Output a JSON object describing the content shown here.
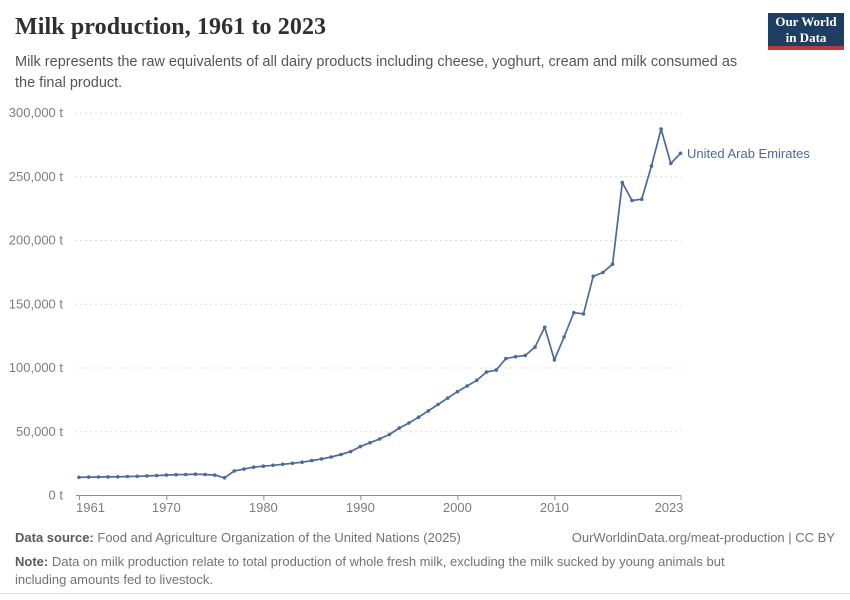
{
  "header": {
    "title": "Milk production, 1961 to 2023",
    "subtitle": "Milk represents the raw equivalents of all dairy products including cheese, yoghurt, cream and milk consumed as the final product.",
    "logo": {
      "line1": "Our World",
      "line2": "in Data",
      "bg_color": "#1d3d63",
      "accent_color": "#bf3a36"
    }
  },
  "chart_data": {
    "type": "line",
    "title": "Milk production, 1961 to 2023",
    "xlabel": "",
    "ylabel": "",
    "unit": "t",
    "grid": "horizontal-dashed",
    "legend_position": "end-of-line-label",
    "xlim": [
      1961,
      2023
    ],
    "ylim": [
      0,
      300000
    ],
    "x_ticks": [
      1961,
      1970,
      1980,
      1990,
      2000,
      2010,
      2023
    ],
    "y_ticks": [
      0,
      50000,
      100000,
      150000,
      200000,
      250000,
      300000
    ],
    "y_tick_labels": [
      "0 t",
      "50,000 t",
      "100,000 t",
      "150,000 t",
      "200,000 t",
      "250,000 t",
      "300,000 t"
    ],
    "series": [
      {
        "name": "United Arab Emirates",
        "color": "#4c6a9c",
        "years": [
          1961,
          1962,
          1963,
          1964,
          1965,
          1966,
          1967,
          1968,
          1969,
          1970,
          1971,
          1972,
          1973,
          1974,
          1975,
          1976,
          1977,
          1978,
          1979,
          1980,
          1981,
          1982,
          1983,
          1984,
          1985,
          1986,
          1987,
          1988,
          1989,
          1990,
          1991,
          1992,
          1993,
          1994,
          1995,
          1996,
          1997,
          1998,
          1999,
          2000,
          2001,
          2002,
          2003,
          2004,
          2005,
          2006,
          2007,
          2008,
          2009,
          2010,
          2011,
          2012,
          2013,
          2014,
          2015,
          2016,
          2017,
          2018,
          2019,
          2020,
          2021,
          2022,
          2023
        ],
        "values": [
          13900,
          14000,
          14100,
          14200,
          14300,
          14500,
          14700,
          15000,
          15200,
          15600,
          15900,
          16100,
          16300,
          16100,
          15600,
          13500,
          18800,
          20300,
          21800,
          22600,
          23300,
          24100,
          24900,
          25700,
          27000,
          28300,
          29800,
          31800,
          34000,
          38000,
          41000,
          44000,
          47500,
          52500,
          56500,
          61000,
          66000,
          71000,
          76000,
          81000,
          85500,
          90000,
          96500,
          98000,
          107000,
          108500,
          109500,
          116000,
          131500,
          106000,
          124000,
          143000,
          142000,
          171500,
          174500,
          181000,
          245000,
          231000,
          232000,
          258000,
          287000,
          260000,
          268000
        ]
      }
    ]
  },
  "footer": {
    "datasource_label": "Data source:",
    "datasource_text": "Food and Agriculture Organization of the United Nations (2025)",
    "link_text": "OurWorldinData.org/meat-production | CC BY",
    "note_label": "Note:",
    "note_text": "Data on milk production relate to total production of whole fresh milk, excluding the milk sucked by young animals but including amounts fed to livestock."
  },
  "colors": {
    "line": "#4c6a9c",
    "grid": "#dcdcdc",
    "axis": "#8c8c8c",
    "tick_text": "#7d7d7d"
  }
}
